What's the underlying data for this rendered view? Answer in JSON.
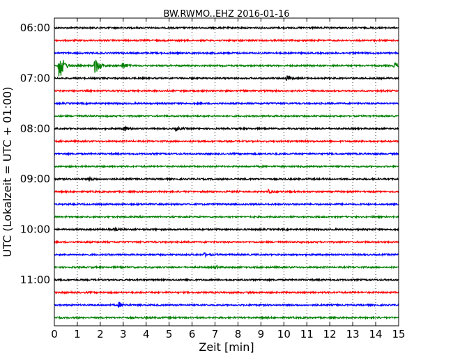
{
  "chart_data": {
    "type": "line",
    "title": "BW.RWMO..EHZ 2016-01-16",
    "xlabel": "Zeit  [min]",
    "ylabel": "UTC (Lokalzeit = UTC + 01:00)",
    "xlim": [
      0,
      15
    ],
    "x_ticks": [
      0,
      1,
      2,
      3,
      4,
      5,
      6,
      7,
      8,
      9,
      10,
      11,
      12,
      13,
      14,
      15
    ],
    "x_tick_labels": [
      "0",
      "1",
      "2",
      "3",
      "4",
      "5",
      "6",
      "7",
      "8",
      "9",
      "10",
      "11",
      "12",
      "13",
      "14",
      "15"
    ],
    "y_tick_labels": [
      "06:00",
      "07:00",
      "08:00",
      "09:00",
      "10:00",
      "11:00"
    ],
    "trace_start_times": [
      "06:00",
      "06:15",
      "06:30",
      "06:45",
      "07:00",
      "07:15",
      "07:30",
      "07:45",
      "08:00",
      "08:15",
      "08:30",
      "08:45",
      "09:00",
      "09:15",
      "09:30",
      "09:45",
      "10:00",
      "10:15",
      "10:30",
      "10:45",
      "11:00",
      "11:15",
      "11:30",
      "11:45"
    ],
    "trace_colors": [
      "#000000",
      "#ff0000",
      "#0000ff",
      "#008000"
    ],
    "grid_x": true,
    "grid_style": "dotted",
    "events": [
      {
        "trace": 3,
        "time_min": 0.2,
        "amplitude": 1.0
      },
      {
        "trace": 3,
        "time_min": 1.75,
        "amplitude": 0.55
      },
      {
        "trace": 3,
        "time_min": 2.95,
        "amplitude": 0.2
      },
      {
        "trace": 3,
        "time_min": 14.8,
        "amplitude": 0.15
      },
      {
        "trace": 4,
        "time_min": 10.1,
        "amplitude": 0.15
      },
      {
        "trace": 8,
        "time_min": 3.0,
        "amplitude": 0.18
      },
      {
        "trace": 8,
        "time_min": 5.3,
        "amplitude": 0.12
      },
      {
        "trace": 12,
        "time_min": 1.5,
        "amplitude": 0.1
      },
      {
        "trace": 13,
        "time_min": 9.3,
        "amplitude": 0.1
      },
      {
        "trace": 16,
        "time_min": 2.6,
        "amplitude": 0.1
      },
      {
        "trace": 18,
        "time_min": 6.5,
        "amplitude": 0.1
      },
      {
        "trace": 19,
        "time_min": 7.0,
        "amplitude": 0.1
      },
      {
        "trace": 22,
        "time_min": 2.8,
        "amplitude": 0.15
      }
    ]
  }
}
